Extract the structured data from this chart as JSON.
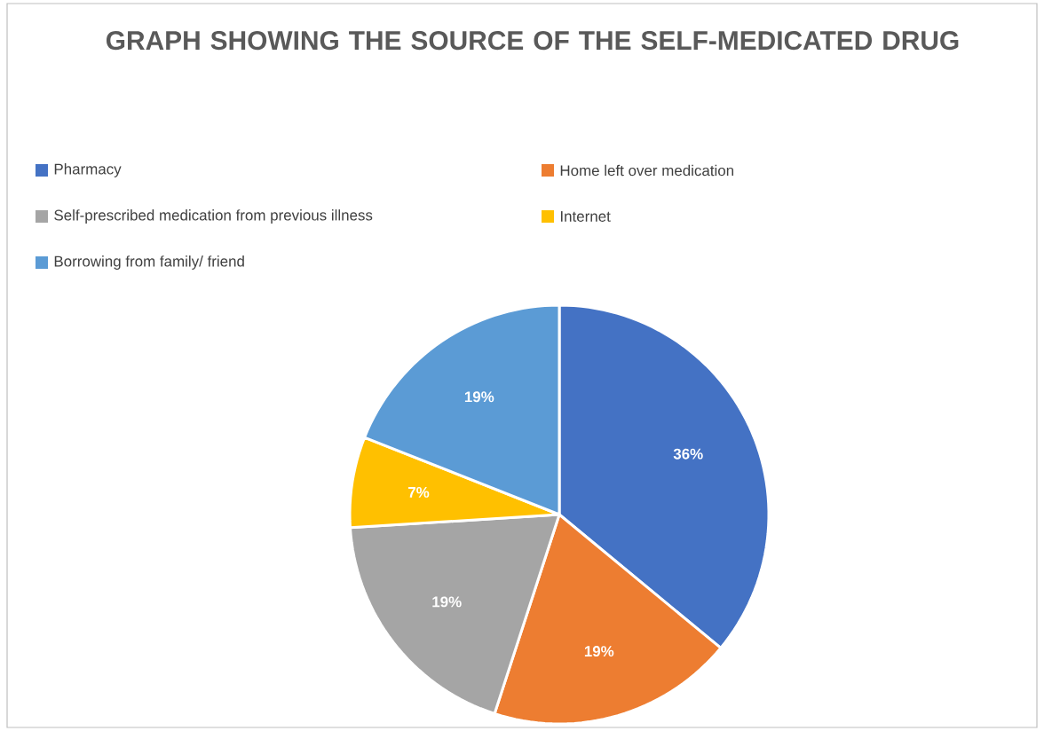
{
  "chart_data": {
    "type": "pie",
    "title": "GRAPH SHOWING THE SOURCE OF THE SELF-MEDICATED DRUG",
    "categories": [
      "Pharmacy",
      "Home left over medication",
      "Self-prescribed medication from previous illness",
      "Internet",
      "Borrowing from family/ friend"
    ],
    "values": [
      36,
      19,
      19,
      7,
      19
    ],
    "value_labels": [
      "36%",
      "19%",
      "19%",
      "7%",
      "19%"
    ],
    "colors": [
      "#4472c4",
      "#ed7d31",
      "#a5a5a5",
      "#ffc000",
      "#5b9bd5"
    ],
    "legend": "top"
  }
}
